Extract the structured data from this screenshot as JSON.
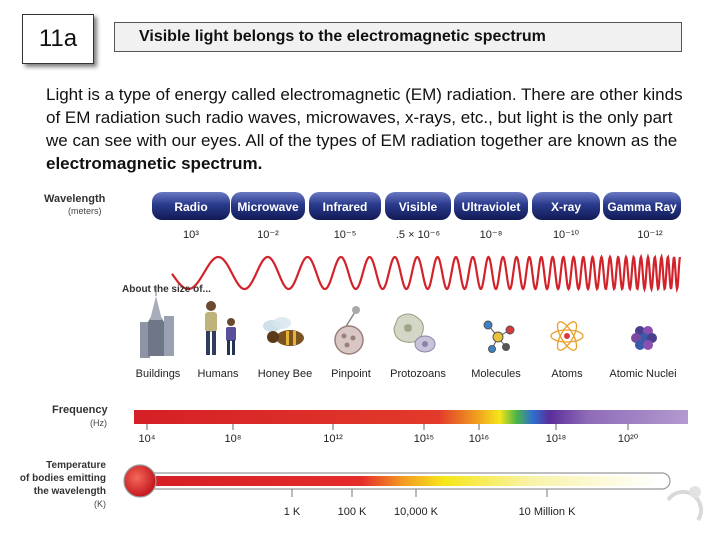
{
  "slide": {
    "badge": "11a",
    "title": "Visible light belongs to the electromagnetic spectrum",
    "body_text": "Light is a type of energy called electromagnetic (EM) radiation. There are other kinds of EM radiation such radio waves, microwaves, x-rays, etc., but light is the only part we can see with our eyes. All of the types of EM radiation together are known as the ",
    "body_bold": "electromagnetic spectrum."
  },
  "diagram": {
    "wavelength_label": "Wavelength",
    "wavelength_unit": "(meters)",
    "bands": [
      {
        "label": "Radio",
        "wavelength": "10³"
      },
      {
        "label": "Microwave",
        "wavelength": "10⁻²"
      },
      {
        "label": "Infrared",
        "wavelength": "10⁻⁵"
      },
      {
        "label": "Visible",
        "wavelength": ".5 × 10⁻⁶"
      },
      {
        "label": "Ultraviolet",
        "wavelength": "10⁻⁸"
      },
      {
        "label": "X-ray",
        "wavelength": "10⁻¹⁰"
      },
      {
        "label": "Gamma Ray",
        "wavelength": "10⁻¹²"
      }
    ],
    "size_label": "About the size of...",
    "objects": [
      {
        "label": "Buildings",
        "icon": "buildings-icon"
      },
      {
        "label": "Humans",
        "icon": "humans-icon"
      },
      {
        "label": "Honey Bee",
        "icon": "honey-bee-icon"
      },
      {
        "label": "Pinpoint",
        "icon": "pinpoint-icon"
      },
      {
        "label": "Protozoans",
        "icon": "protozoan-icon"
      },
      {
        "label": "Molecules",
        "icon": "molecule-icon"
      },
      {
        "label": "Atoms",
        "icon": "atom-icon"
      },
      {
        "label": "Atomic Nuclei",
        "icon": "atomic-nucleus-icon"
      }
    ],
    "frequency_label": "Frequency",
    "frequency_unit": "(Hz)",
    "frequency_ticks": [
      "10⁴",
      "10⁸",
      "10¹²",
      "10¹⁵",
      "10¹⁶",
      "10¹⁸",
      "10²⁰"
    ],
    "temperature_label_1": "Temperature",
    "temperature_label_2": "of bodies emitting",
    "temperature_label_3": "the wavelength",
    "temperature_unit": "(K)",
    "temperature_ticks": [
      "1 K",
      "100 K",
      "10,000 K",
      "10 Million K"
    ],
    "colors": {
      "band_dark": "#1d2a6e",
      "band_light": "#8a96d6",
      "wave": "#d2232a",
      "frequency_start": "#d51f26",
      "frequency_end": "#a57fbf"
    }
  }
}
